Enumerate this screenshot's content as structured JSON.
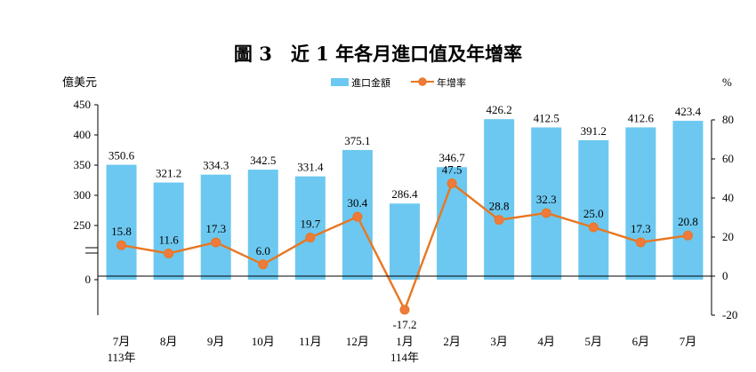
{
  "chart_data": {
    "type": "bar",
    "title": "圖 3　近 1 年各月進口值及年增率",
    "left_unit": "億美元",
    "right_unit": "%",
    "categories": [
      "7月",
      "8月",
      "9月",
      "10月",
      "11月",
      "12月",
      "1月",
      "2月",
      "3月",
      "4月",
      "5月",
      "6月",
      "7月"
    ],
    "year_labels": [
      "113年",
      "",
      "",
      "",
      "",
      "",
      "114年",
      "",
      "",
      "",
      "",
      "",
      ""
    ],
    "series": [
      {
        "name": "進口金額",
        "type": "bar",
        "axis": "left",
        "values": [
          350.6,
          321.2,
          334.3,
          342.5,
          331.4,
          375.1,
          286.4,
          346.7,
          426.2,
          412.5,
          391.2,
          412.6,
          423.4
        ]
      },
      {
        "name": "年增率",
        "type": "line",
        "axis": "right",
        "values": [
          15.8,
          11.6,
          17.3,
          6.0,
          19.7,
          30.4,
          -17.2,
          47.5,
          28.8,
          32.3,
          25.0,
          17.3,
          20.8
        ]
      }
    ],
    "left_axis": {
      "broken": true,
      "ticks": [
        450,
        400,
        350,
        300,
        250,
        0
      ],
      "ticks_text": [
        "450",
        "400",
        "350",
        "300",
        "250",
        "0"
      ]
    },
    "right_axis": {
      "ylim": [
        -20,
        80
      ],
      "ticks": [
        80,
        60,
        40,
        20,
        0,
        -20
      ],
      "ticks_text": [
        "80",
        "60",
        "40",
        "20",
        "0",
        "-20"
      ]
    },
    "legend_position": "top-center",
    "grid": false,
    "colors": {
      "bar": "#6cc8f0",
      "line": "#e87722",
      "marker_fill": "#ef7a3b"
    }
  }
}
